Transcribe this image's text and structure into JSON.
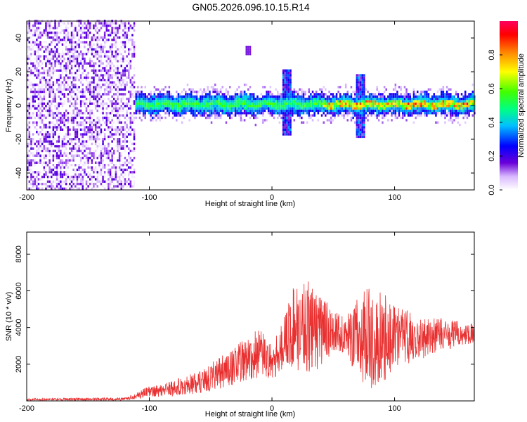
{
  "title": "GN05.2026.096.10.15.R14",
  "chart_data": [
    {
      "type": "heatmap",
      "name": "spectrogram",
      "xlabel": "Height of straight line (km)",
      "ylabel": "Frequency (Hz)",
      "xlim": [
        -200,
        165
      ],
      "ylim": [
        -50,
        50
      ],
      "xticks": [
        -200,
        -100,
        0,
        100
      ],
      "xtick_labels": [
        "-200",
        "-100",
        "0",
        "100"
      ],
      "yticks": [
        -40,
        -20,
        0,
        20,
        40
      ],
      "ytick_labels": [
        "-40",
        "-20",
        "0",
        "20",
        "40"
      ],
      "colorbar": {
        "label": "Normalized spectral amplitude",
        "range": [
          0,
          1
        ],
        "ticks": [
          0.0,
          0.2,
          0.4,
          0.6,
          0.8
        ],
        "tick_labels": [
          "0.0",
          "0.2",
          "0.4",
          "0.6",
          "0.8"
        ],
        "colormap": [
          "#ffffff",
          "#6a00d8",
          "#0000ff",
          "#00c0ff",
          "#00ff80",
          "#40ff00",
          "#ffff00",
          "#ff8000",
          "#ff0000",
          "#ff0060"
        ]
      },
      "features": [
        {
          "description": "broadband noise region",
          "x_range": [
            -200,
            -112
          ],
          "freq_range": [
            -50,
            50
          ],
          "level": 0.1
        },
        {
          "description": "central band",
          "x_range": [
            -112,
            165
          ],
          "freq_center": 0,
          "half_width": 6,
          "level": 0.5
        },
        {
          "description": "burst",
          "x": 12,
          "freq_range": [
            -18,
            20
          ]
        },
        {
          "description": "burst",
          "x": 72,
          "freq_range": [
            -20,
            18
          ]
        },
        {
          "description": "spot",
          "x": -20,
          "freq": 32
        }
      ]
    },
    {
      "type": "line",
      "name": "snr",
      "xlabel": "Height of straight line (km)",
      "ylabel": "SNR (10 * v/v)",
      "xlim": [
        -200,
        165
      ],
      "ylim": [
        0,
        9200
      ],
      "xticks": [
        -200,
        -100,
        0,
        100
      ],
      "xtick_labels": [
        "-200",
        "-100",
        "0",
        "100"
      ],
      "yticks": [
        2000,
        4000,
        6000,
        8000
      ],
      "ytick_labels": [
        "2000",
        "4000",
        "6000",
        "8000"
      ],
      "color": "#e83030",
      "envelope": {
        "x": [
          -200,
          -120,
          -110,
          -100,
          -80,
          -60,
          -40,
          -20,
          -10,
          0,
          10,
          20,
          30,
          40,
          50,
          60,
          70,
          80,
          90,
          100,
          110,
          120,
          140,
          165
        ],
        "mean": [
          80,
          100,
          300,
          500,
          700,
          1000,
          1600,
          2300,
          2600,
          2100,
          3200,
          4200,
          4000,
          3800,
          3800,
          3600,
          3400,
          3500,
          3300,
          3600,
          3500,
          3400,
          3600,
          3700
        ],
        "amplitude": [
          60,
          80,
          200,
          300,
          450,
          600,
          900,
          1200,
          1400,
          900,
          1600,
          2600,
          2600,
          2000,
          1100,
          1000,
          2200,
          2800,
          2600,
          1800,
          1500,
          1200,
          900,
          500
        ]
      }
    }
  ]
}
